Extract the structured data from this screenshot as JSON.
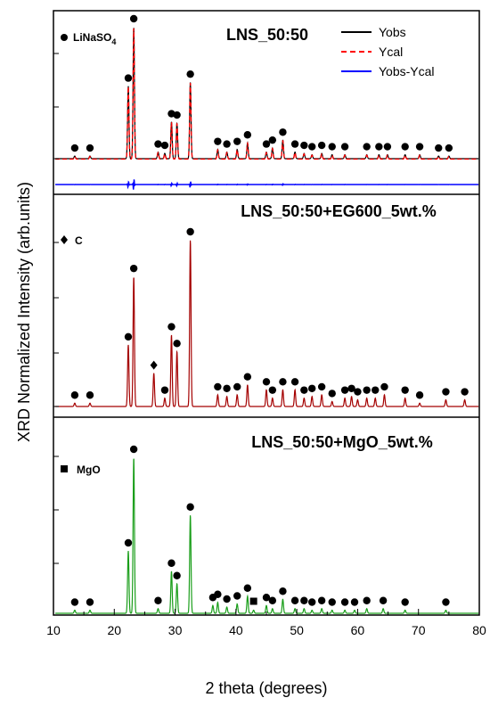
{
  "chart_data": {
    "type": "line",
    "xlabel": "2 theta (degrees)",
    "ylabel": "XRD Normalized Intensity (arb.units)",
    "xlim": [
      10,
      80
    ],
    "x_ticks": [
      "10",
      "20",
      "30",
      "40",
      "50",
      "60",
      "70",
      "80"
    ],
    "panels": [
      {
        "title": "LNS_50:50",
        "marker_label": "LiNaSO",
        "marker_label_sub": "4",
        "legend": [
          "Yobs",
          "Ycal",
          "Yobs-Ycal"
        ],
        "colors": {
          "obs": "#000000",
          "cal": "#ff0000",
          "diff": "#0000ff",
          "dots": "#000000"
        },
        "peaks": [
          [
            13.5,
            0.02
          ],
          [
            16.0,
            0.02
          ],
          [
            22.3,
            0.55
          ],
          [
            23.2,
            1.0
          ],
          [
            27.2,
            0.05
          ],
          [
            28.3,
            0.04
          ],
          [
            29.4,
            0.28
          ],
          [
            30.3,
            0.27
          ],
          [
            32.5,
            0.58
          ],
          [
            37.0,
            0.07
          ],
          [
            38.5,
            0.05
          ],
          [
            40.2,
            0.07
          ],
          [
            41.9,
            0.12
          ],
          [
            45.0,
            0.05
          ],
          [
            46.0,
            0.08
          ],
          [
            47.7,
            0.14
          ],
          [
            49.7,
            0.05
          ],
          [
            51.2,
            0.04
          ],
          [
            52.5,
            0.03
          ],
          [
            54.1,
            0.04
          ],
          [
            55.8,
            0.03
          ],
          [
            57.9,
            0.03
          ],
          [
            61.5,
            0.03
          ],
          [
            63.5,
            0.03
          ],
          [
            64.9,
            0.03
          ],
          [
            67.8,
            0.03
          ],
          [
            70.2,
            0.03
          ],
          [
            73.3,
            0.02
          ],
          [
            75.0,
            0.02
          ]
        ],
        "dots": [
          13.5,
          16.0,
          22.3,
          23.2,
          27.2,
          28.3,
          29.4,
          30.3,
          32.5,
          37.0,
          38.5,
          40.2,
          41.9,
          45.0,
          46.0,
          47.7,
          49.7,
          51.2,
          52.5,
          54.1,
          55.8,
          57.9,
          61.5,
          63.5,
          64.9,
          67.8,
          70.2,
          73.3,
          75.0
        ],
        "c_dots": [],
        "mgo_dots": []
      },
      {
        "title": "LNS_50:50+EG600_5wt.%",
        "marker_label": "C",
        "legend": [],
        "colors": {
          "obs": "#a40000",
          "dots": "#000000"
        },
        "peaks": [
          [
            13.5,
            0.02
          ],
          [
            16.0,
            0.02
          ],
          [
            22.3,
            0.37
          ],
          [
            23.2,
            0.78
          ],
          [
            26.5,
            0.2
          ],
          [
            28.3,
            0.05
          ],
          [
            29.4,
            0.43
          ],
          [
            30.3,
            0.33
          ],
          [
            32.5,
            1.0
          ],
          [
            37.0,
            0.07
          ],
          [
            38.5,
            0.06
          ],
          [
            40.2,
            0.07
          ],
          [
            41.9,
            0.13
          ],
          [
            45.0,
            0.1
          ],
          [
            46.0,
            0.05
          ],
          [
            47.7,
            0.1
          ],
          [
            49.7,
            0.1
          ],
          [
            51.2,
            0.05
          ],
          [
            52.5,
            0.06
          ],
          [
            54.1,
            0.07
          ],
          [
            55.8,
            0.03
          ],
          [
            57.9,
            0.05
          ],
          [
            59.0,
            0.06
          ],
          [
            60.0,
            0.04
          ],
          [
            61.5,
            0.05
          ],
          [
            62.9,
            0.05
          ],
          [
            64.4,
            0.07
          ],
          [
            67.8,
            0.05
          ],
          [
            70.2,
            0.02
          ],
          [
            74.5,
            0.04
          ],
          [
            77.6,
            0.04
          ]
        ],
        "dots": [
          13.5,
          16.0,
          22.3,
          23.2,
          28.3,
          29.4,
          30.3,
          32.5,
          37.0,
          38.5,
          40.2,
          41.9,
          45.0,
          46.0,
          47.7,
          49.7,
          51.2,
          52.5,
          54.1,
          55.8,
          57.9,
          59.0,
          60.0,
          61.5,
          62.9,
          64.4,
          67.8,
          70.2,
          74.5,
          77.6
        ],
        "c_dots": [
          26.5
        ],
        "mgo_dots": []
      },
      {
        "title": "LNS_50:50+MgO_5wt.%",
        "marker_label": "MgO",
        "legend": [],
        "colors": {
          "obs": "#1a9e1a",
          "dots": "#000000"
        },
        "peaks": [
          [
            13.5,
            0.02
          ],
          [
            16.0,
            0.02
          ],
          [
            22.3,
            0.4
          ],
          [
            23.2,
            1.0
          ],
          [
            27.2,
            0.03
          ],
          [
            29.4,
            0.27
          ],
          [
            30.3,
            0.19
          ],
          [
            32.5,
            0.63
          ],
          [
            36.2,
            0.05
          ],
          [
            37.0,
            0.07
          ],
          [
            38.5,
            0.04
          ],
          [
            40.2,
            0.06
          ],
          [
            41.9,
            0.11
          ],
          [
            42.9,
            0.02
          ],
          [
            45.0,
            0.05
          ],
          [
            46.0,
            0.03
          ],
          [
            47.7,
            0.09
          ],
          [
            49.7,
            0.03
          ],
          [
            51.2,
            0.03
          ],
          [
            52.5,
            0.02
          ],
          [
            54.1,
            0.03
          ],
          [
            55.8,
            0.02
          ],
          [
            57.9,
            0.02
          ],
          [
            59.5,
            0.02
          ],
          [
            61.5,
            0.03
          ],
          [
            64.2,
            0.03
          ],
          [
            67.8,
            0.02
          ],
          [
            74.5,
            0.02
          ]
        ],
        "dots": [
          13.5,
          16.0,
          22.3,
          23.2,
          27.2,
          29.4,
          30.3,
          32.5,
          36.2,
          37.0,
          38.5,
          40.2,
          41.9,
          45.0,
          46.0,
          47.7,
          49.7,
          51.2,
          52.5,
          54.1,
          55.8,
          57.9,
          59.5,
          61.5,
          64.2,
          67.8,
          74.5
        ],
        "c_dots": [],
        "mgo_dots": [
          42.9
        ]
      }
    ]
  }
}
